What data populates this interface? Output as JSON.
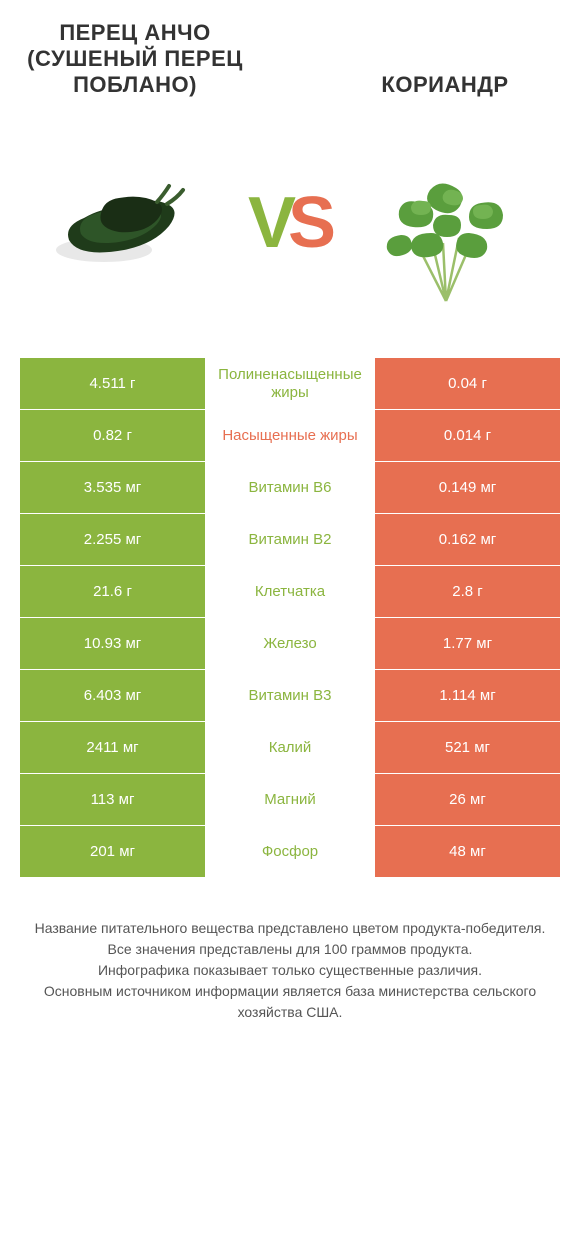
{
  "colors": {
    "left": "#8bb53f",
    "right": "#e76f51",
    "vs_v": "#8bb53f",
    "vs_s": "#e76f51"
  },
  "header": {
    "left_title": "ПЕРЕЦ АНЧО (СУШЕНЫЙ ПЕРЕЦ ПОБЛАНО)",
    "right_title": "КОРИАНДР"
  },
  "vs": {
    "v": "V",
    "s": "S"
  },
  "rows": [
    {
      "left": "4.511 г",
      "label": "Полиненасыщенные жиры",
      "right": "0.04 г",
      "winner": "left"
    },
    {
      "left": "0.82 г",
      "label": "Насыщенные жиры",
      "right": "0.014 г",
      "winner": "right"
    },
    {
      "left": "3.535 мг",
      "label": "Витамин B6",
      "right": "0.149 мг",
      "winner": "left"
    },
    {
      "left": "2.255 мг",
      "label": "Витамин B2",
      "right": "0.162 мг",
      "winner": "left"
    },
    {
      "left": "21.6 г",
      "label": "Клетчатка",
      "right": "2.8 г",
      "winner": "left"
    },
    {
      "left": "10.93 мг",
      "label": "Железо",
      "right": "1.77 мг",
      "winner": "left"
    },
    {
      "left": "6.403 мг",
      "label": "Витамин B3",
      "right": "1.114 мг",
      "winner": "left"
    },
    {
      "left": "2411 мг",
      "label": "Калий",
      "right": "521 мг",
      "winner": "left"
    },
    {
      "left": "113 мг",
      "label": "Магний",
      "right": "26 мг",
      "winner": "left"
    },
    {
      "left": "201 мг",
      "label": "Фосфор",
      "right": "48 мг",
      "winner": "left"
    }
  ],
  "footer": {
    "line1": "Название питательного вещества представлено цветом продукта-победителя.",
    "line2": "Все значения представлены для 100 граммов продукта.",
    "line3": "Инфографика показывает только существенные различия.",
    "line4": "Основным источником информации является база министерства сельского хозяйства США."
  }
}
